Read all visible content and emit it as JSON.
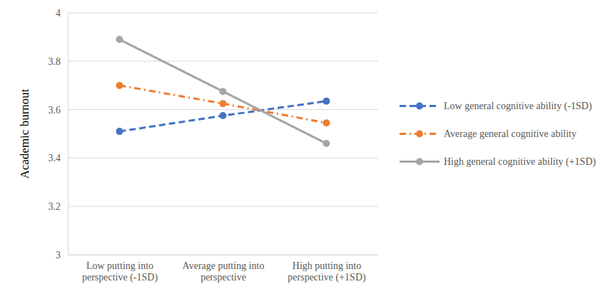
{
  "chart_data": {
    "type": "line",
    "y_label": "Academic burnout",
    "categories": [
      "Low putting into perspective (-1SD)",
      "Average putting into perspective",
      "High putting into perspective (+1SD)"
    ],
    "series": [
      {
        "name": "Low general cognitive ability (-1SD)",
        "color": "#4472c4",
        "line_style": "dashed",
        "marker": "circle",
        "values": [
          3.51,
          3.575,
          3.635
        ]
      },
      {
        "name": "Average general cognitive ability",
        "color": "#ed7d31",
        "line_style": "dashdot",
        "marker": "circle",
        "values": [
          3.7,
          3.625,
          3.545
        ]
      },
      {
        "name": "High general cognitive ability (+1SD)",
        "color": "#a5a5a5",
        "line_style": "solid",
        "marker": "circle",
        "values": [
          3.89,
          3.675,
          3.46
        ]
      }
    ],
    "ylim": [
      3,
      4
    ],
    "yticks": [
      3,
      3.2,
      3.4,
      3.6,
      3.8,
      4
    ],
    "grid": true,
    "legend": "right"
  }
}
